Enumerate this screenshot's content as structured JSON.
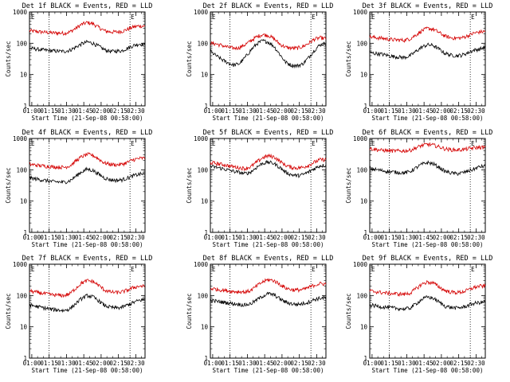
{
  "chart_data": [
    {
      "type": "line",
      "title": "Det 1f BLACK = Events, RED = LLD",
      "xlabel": "Start Time (21-Sep-08 00:58:00)",
      "ylabel": "Counts/sec",
      "x_ticks": [
        "01:00",
        "01:15",
        "01:30",
        "01:45",
        "02:00",
        "02:15",
        "02:30"
      ],
      "y_ticks": [
        "1",
        "10",
        "100",
        "1000"
      ],
      "ylim": [
        1,
        1000
      ],
      "y_scale": "log",
      "x_range_minutes": [
        0,
        100
      ],
      "markers": [
        {
          "minute": 17,
          "label": ""
        },
        {
          "minute": 87,
          "label": "E"
        }
      ],
      "corner_label": "E",
      "series": [
        {
          "color": "#000000",
          "x": [
            0,
            10,
            20,
            30,
            35,
            40,
            45,
            50,
            55,
            60,
            65,
            70,
            75,
            80,
            85,
            90,
            95,
            100
          ],
          "values": [
            70,
            62,
            57,
            55,
            60,
            75,
            95,
            110,
            100,
            80,
            62,
            55,
            56,
            58,
            70,
            85,
            95,
            90
          ]
        },
        {
          "color": "#d40000",
          "x": [
            0,
            10,
            20,
            30,
            35,
            40,
            45,
            50,
            55,
            60,
            65,
            70,
            75,
            80,
            85,
            90,
            95,
            100
          ],
          "values": [
            250,
            230,
            215,
            210,
            230,
            300,
            400,
            460,
            420,
            320,
            250,
            230,
            230,
            240,
            280,
            330,
            360,
            350
          ]
        }
      ]
    },
    {
      "type": "line",
      "title": "Det 2f BLACK = Events, RED = LLD",
      "xlabel": "Start Time (21-Sep-08 00:58:00)",
      "ylabel": "Counts/sec",
      "x_ticks": [
        "01:00",
        "01:15",
        "01:30",
        "01:45",
        "02:00",
        "02:15",
        "02:30"
      ],
      "y_ticks": [
        "1",
        "10",
        "100",
        "1000"
      ],
      "ylim": [
        1,
        1000
      ],
      "y_scale": "log",
      "x_range_minutes": [
        0,
        100
      ],
      "markers": [
        {
          "minute": 17,
          "label": ""
        },
        {
          "minute": 87,
          "label": "E"
        }
      ],
      "corner_label": "E",
      "series": [
        {
          "color": "#000000",
          "x": [
            0,
            5,
            10,
            15,
            20,
            25,
            30,
            35,
            40,
            45,
            50,
            55,
            60,
            65,
            70,
            75,
            80,
            85,
            90,
            95,
            100
          ],
          "values": [
            55,
            40,
            30,
            24,
            20,
            22,
            35,
            60,
            95,
            120,
            110,
            80,
            45,
            25,
            20,
            19,
            22,
            35,
            60,
            90,
            100
          ]
        },
        {
          "color": "#d40000",
          "x": [
            0,
            5,
            10,
            15,
            20,
            25,
            30,
            35,
            40,
            45,
            50,
            55,
            60,
            65,
            70,
            75,
            80,
            85,
            90,
            95,
            100
          ],
          "values": [
            100,
            95,
            85,
            75,
            70,
            72,
            90,
            120,
            160,
            190,
            180,
            140,
            95,
            75,
            70,
            70,
            78,
            100,
            135,
            150,
            140
          ]
        }
      ]
    },
    {
      "type": "line",
      "title": "Det 3f BLACK = Events, RED = LLD",
      "xlabel": "Start Time (21-Sep-08 00:58:00)",
      "ylabel": "Counts/sec",
      "x_ticks": [
        "01:00",
        "01:15",
        "01:30",
        "01:45",
        "02:00",
        "02:15",
        "02:30"
      ],
      "y_ticks": [
        "1",
        "10",
        "100",
        "1000"
      ],
      "ylim": [
        1,
        1000
      ],
      "y_scale": "log",
      "x_range_minutes": [
        0,
        100
      ],
      "markers": [
        {
          "minute": 17,
          "label": ""
        },
        {
          "minute": 87,
          "label": "E"
        }
      ],
      "corner_label": "E",
      "series": [
        {
          "color": "#000000",
          "x": [
            0,
            10,
            20,
            30,
            35,
            40,
            45,
            50,
            55,
            60,
            65,
            70,
            75,
            80,
            85,
            90,
            95,
            100
          ],
          "values": [
            50,
            45,
            38,
            35,
            40,
            55,
            75,
            90,
            85,
            65,
            48,
            42,
            40,
            42,
            50,
            60,
            65,
            75
          ]
        },
        {
          "color": "#d40000",
          "x": [
            0,
            10,
            20,
            30,
            35,
            40,
            45,
            50,
            55,
            60,
            65,
            70,
            75,
            80,
            85,
            90,
            95,
            100
          ],
          "values": [
            160,
            145,
            130,
            125,
            140,
            185,
            250,
            300,
            280,
            220,
            170,
            150,
            145,
            150,
            175,
            210,
            230,
            240
          ]
        }
      ]
    },
    {
      "type": "line",
      "title": "Det 4f BLACK = Events, RED = LLD",
      "xlabel": "Start Time (21-Sep-08 00:58:00)",
      "ylabel": "Counts/sec",
      "x_ticks": [
        "01:00",
        "01:15",
        "01:30",
        "01:45",
        "02:00",
        "02:15",
        "02:30"
      ],
      "y_ticks": [
        "1",
        "10",
        "100",
        "1000"
      ],
      "ylim": [
        1,
        1000
      ],
      "y_scale": "log",
      "x_range_minutes": [
        0,
        100
      ],
      "markers": [
        {
          "minute": 17,
          "label": ""
        },
        {
          "minute": 87,
          "label": "E"
        }
      ],
      "corner_label": "E",
      "series": [
        {
          "color": "#000000",
          "x": [
            0,
            10,
            20,
            30,
            35,
            40,
            45,
            50,
            55,
            60,
            65,
            70,
            75,
            80,
            85,
            90,
            95,
            100
          ],
          "values": [
            55,
            48,
            42,
            40,
            45,
            62,
            85,
            105,
            95,
            72,
            55,
            48,
            46,
            48,
            55,
            65,
            72,
            75
          ]
        },
        {
          "color": "#d40000",
          "x": [
            0,
            10,
            20,
            30,
            35,
            40,
            45,
            50,
            55,
            60,
            65,
            70,
            75,
            80,
            85,
            90,
            95,
            100
          ],
          "values": [
            150,
            135,
            125,
            120,
            135,
            190,
            260,
            310,
            290,
            220,
            165,
            150,
            145,
            150,
            175,
            210,
            230,
            235
          ]
        }
      ]
    },
    {
      "type": "line",
      "title": "Det 5f BLACK = Events, RED = LLD",
      "xlabel": "Start Time (21-Sep-08 00:58:00)",
      "ylabel": "Counts/sec",
      "x_ticks": [
        "01:00",
        "01:15",
        "01:30",
        "01:45",
        "02:00",
        "02:15",
        "02:30"
      ],
      "y_ticks": [
        "1",
        "10",
        "100",
        "1000"
      ],
      "ylim": [
        1,
        1000
      ],
      "y_scale": "log",
      "x_range_minutes": [
        0,
        100
      ],
      "markers": [
        {
          "minute": 17,
          "label": ""
        },
        {
          "minute": 87,
          "label": "E"
        }
      ],
      "corner_label": "E",
      "series": [
        {
          "color": "#000000",
          "x": [
            0,
            10,
            20,
            30,
            35,
            40,
            45,
            50,
            55,
            60,
            65,
            70,
            75,
            80,
            85,
            90,
            95,
            100
          ],
          "values": [
            130,
            110,
            90,
            75,
            85,
            120,
            160,
            175,
            160,
            120,
            85,
            70,
            65,
            70,
            85,
            110,
            135,
            140
          ]
        },
        {
          "color": "#d40000",
          "x": [
            0,
            10,
            20,
            30,
            35,
            40,
            45,
            50,
            55,
            60,
            65,
            70,
            75,
            80,
            85,
            90,
            95,
            100
          ],
          "values": [
            170,
            150,
            125,
            110,
            125,
            175,
            240,
            280,
            260,
            190,
            140,
            120,
            115,
            120,
            140,
            175,
            210,
            210
          ]
        }
      ]
    },
    {
      "type": "line",
      "title": "Det 6f BLACK = Events, RED = LLD",
      "xlabel": "Start Time (21-Sep-08 00:58:00)",
      "ylabel": "Counts/sec",
      "x_ticks": [
        "01:00",
        "01:15",
        "01:30",
        "01:45",
        "02:00",
        "02:15",
        "02:30"
      ],
      "y_ticks": [
        "1",
        "10",
        "100",
        "1000"
      ],
      "ylim": [
        1,
        1000
      ],
      "y_scale": "log",
      "x_range_minutes": [
        0,
        100
      ],
      "markers": [
        {
          "minute": 17,
          "label": ""
        },
        {
          "minute": 87,
          "label": "E"
        }
      ],
      "corner_label": "E",
      "series": [
        {
          "color": "#000000",
          "x": [
            0,
            10,
            20,
            30,
            35,
            40,
            45,
            50,
            55,
            60,
            65,
            70,
            75,
            80,
            85,
            90,
            95,
            100
          ],
          "values": [
            110,
            95,
            85,
            80,
            88,
            115,
            150,
            170,
            155,
            120,
            90,
            80,
            75,
            80,
            90,
            105,
            125,
            130
          ]
        },
        {
          "color": "#d40000",
          "x": [
            0,
            10,
            20,
            30,
            35,
            40,
            45,
            50,
            55,
            60,
            65,
            70,
            75,
            80,
            85,
            90,
            95,
            100
          ],
          "values": [
            480,
            420,
            400,
            400,
            420,
            500,
            600,
            650,
            620,
            540,
            470,
            440,
            430,
            440,
            470,
            500,
            520,
            520
          ]
        }
      ]
    },
    {
      "type": "line",
      "title": "Det 7f BLACK = Events, RED = LLD",
      "xlabel": "Start Time (21-Sep-08 00:58:00)",
      "ylabel": "Counts/sec",
      "x_ticks": [
        "01:00",
        "01:15",
        "01:30",
        "01:45",
        "02:00",
        "02:15",
        "02:30"
      ],
      "y_ticks": [
        "1",
        "10",
        "100",
        "1000"
      ],
      "ylim": [
        1,
        1000
      ],
      "y_scale": "log",
      "x_range_minutes": [
        0,
        100
      ],
      "markers": [
        {
          "minute": 17,
          "label": ""
        },
        {
          "minute": 87,
          "label": "E"
        }
      ],
      "corner_label": "E",
      "series": [
        {
          "color": "#000000",
          "x": [
            0,
            10,
            20,
            30,
            35,
            40,
            45,
            50,
            55,
            60,
            65,
            70,
            75,
            80,
            85,
            90,
            95,
            100
          ],
          "values": [
            50,
            42,
            36,
            33,
            38,
            55,
            80,
            100,
            90,
            68,
            48,
            42,
            40,
            42,
            50,
            60,
            70,
            75
          ]
        },
        {
          "color": "#d40000",
          "x": [
            0,
            10,
            20,
            30,
            35,
            40,
            45,
            50,
            55,
            60,
            65,
            70,
            75,
            80,
            85,
            90,
            95,
            100
          ],
          "values": [
            140,
            120,
            105,
            100,
            115,
            170,
            250,
            300,
            280,
            210,
            150,
            130,
            125,
            130,
            150,
            180,
            200,
            195
          ]
        }
      ]
    },
    {
      "type": "line",
      "title": "Det 8f BLACK = Events, RED = LLD",
      "xlabel": "Start Time (21-Sep-08 00:58:00)",
      "ylabel": "Counts/sec",
      "x_ticks": [
        "01:00",
        "01:15",
        "01:30",
        "01:45",
        "02:00",
        "02:15",
        "02:30"
      ],
      "y_ticks": [
        "1",
        "10",
        "100",
        "1000"
      ],
      "ylim": [
        1,
        1000
      ],
      "y_scale": "log",
      "x_range_minutes": [
        0,
        100
      ],
      "markers": [
        {
          "minute": 17,
          "label": ""
        },
        {
          "minute": 87,
          "label": "E"
        }
      ],
      "corner_label": "E",
      "series": [
        {
          "color": "#000000",
          "x": [
            0,
            10,
            20,
            30,
            35,
            40,
            45,
            50,
            55,
            60,
            65,
            70,
            75,
            80,
            85,
            90,
            95,
            100
          ],
          "values": [
            70,
            62,
            55,
            50,
            55,
            72,
            95,
            115,
            105,
            80,
            62,
            55,
            52,
            55,
            62,
            75,
            82,
            85
          ]
        },
        {
          "color": "#d40000",
          "x": [
            0,
            10,
            20,
            30,
            35,
            40,
            45,
            50,
            55,
            60,
            65,
            70,
            75,
            80,
            85,
            90,
            95,
            100
          ],
          "values": [
            170,
            150,
            135,
            130,
            145,
            200,
            270,
            320,
            300,
            230,
            175,
            155,
            150,
            155,
            180,
            215,
            240,
            235
          ]
        }
      ]
    },
    {
      "type": "line",
      "title": "Det 9f BLACK = Events, RED = LLD",
      "xlabel": "Start Time (21-Sep-08 00:58:00)",
      "ylabel": "Counts/sec",
      "x_ticks": [
        "01:00",
        "01:15",
        "01:30",
        "01:45",
        "02:00",
        "02:15",
        "02:30"
      ],
      "y_ticks": [
        "1",
        "10",
        "100",
        "1000"
      ],
      "ylim": [
        1,
        1000
      ],
      "y_scale": "log",
      "x_range_minutes": [
        0,
        100
      ],
      "markers": [
        {
          "minute": 17,
          "label": ""
        },
        {
          "minute": 87,
          "label": "E"
        }
      ],
      "corner_label": "E",
      "series": [
        {
          "color": "#000000",
          "x": [
            0,
            10,
            20,
            30,
            35,
            40,
            45,
            50,
            55,
            60,
            65,
            70,
            75,
            80,
            85,
            90,
            95,
            100
          ],
          "values": [
            50,
            44,
            40,
            37,
            40,
            55,
            75,
            90,
            82,
            62,
            46,
            42,
            40,
            42,
            48,
            56,
            60,
            62
          ]
        },
        {
          "color": "#d40000",
          "x": [
            0,
            10,
            20,
            30,
            35,
            40,
            45,
            50,
            55,
            60,
            65,
            70,
            75,
            80,
            85,
            90,
            95,
            100
          ],
          "values": [
            140,
            125,
            115,
            110,
            120,
            165,
            230,
            270,
            250,
            190,
            145,
            130,
            125,
            130,
            150,
            180,
            200,
            200
          ]
        }
      ]
    }
  ]
}
